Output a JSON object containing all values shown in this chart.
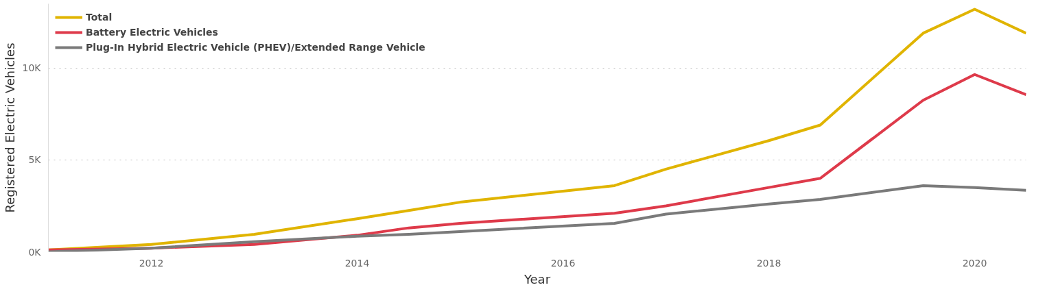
{
  "chart_data": {
    "type": "line",
    "xlabel": "Year",
    "ylabel": "Registered Electric Vehicles",
    "x": [
      2011,
      2012,
      2013,
      2014,
      2014.5,
      2015,
      2016.5,
      2017,
      2018,
      2018.5,
      2019.5,
      2020,
      2020.5
    ],
    "series": [
      {
        "name": "Total",
        "color": "#e0b400",
        "values": [
          100,
          400,
          950,
          1800,
          2250,
          2700,
          3600,
          4500,
          6050,
          6900,
          11900,
          13200,
          11900
        ]
      },
      {
        "name": "Battery Electric Vehicles",
        "color": "#de3a4a",
        "values": [
          100,
          200,
          400,
          900,
          1300,
          1550,
          2100,
          2500,
          3500,
          4000,
          8250,
          9650,
          8550
        ]
      },
      {
        "name": "Plug-In Hybrid Electric Vehicle (PHEV)/Extended Range Vehicle",
        "color": "#7a7a7a",
        "values": [
          0,
          200,
          550,
          850,
          950,
          1100,
          1550,
          2050,
          2600,
          2850,
          3600,
          3500,
          3350
        ]
      }
    ],
    "xlim": [
      2011,
      2020.5
    ],
    "ylim": [
      0,
      13500
    ],
    "xticks": [
      2012,
      2014,
      2016,
      2018,
      2020
    ],
    "yticks": [
      {
        "value": 0,
        "label": "0K"
      },
      {
        "value": 5000,
        "label": "5K"
      },
      {
        "value": 10000,
        "label": "10K"
      }
    ],
    "grid": "y",
    "legend": "top left",
    "line_style": "solid",
    "marker": "none"
  }
}
